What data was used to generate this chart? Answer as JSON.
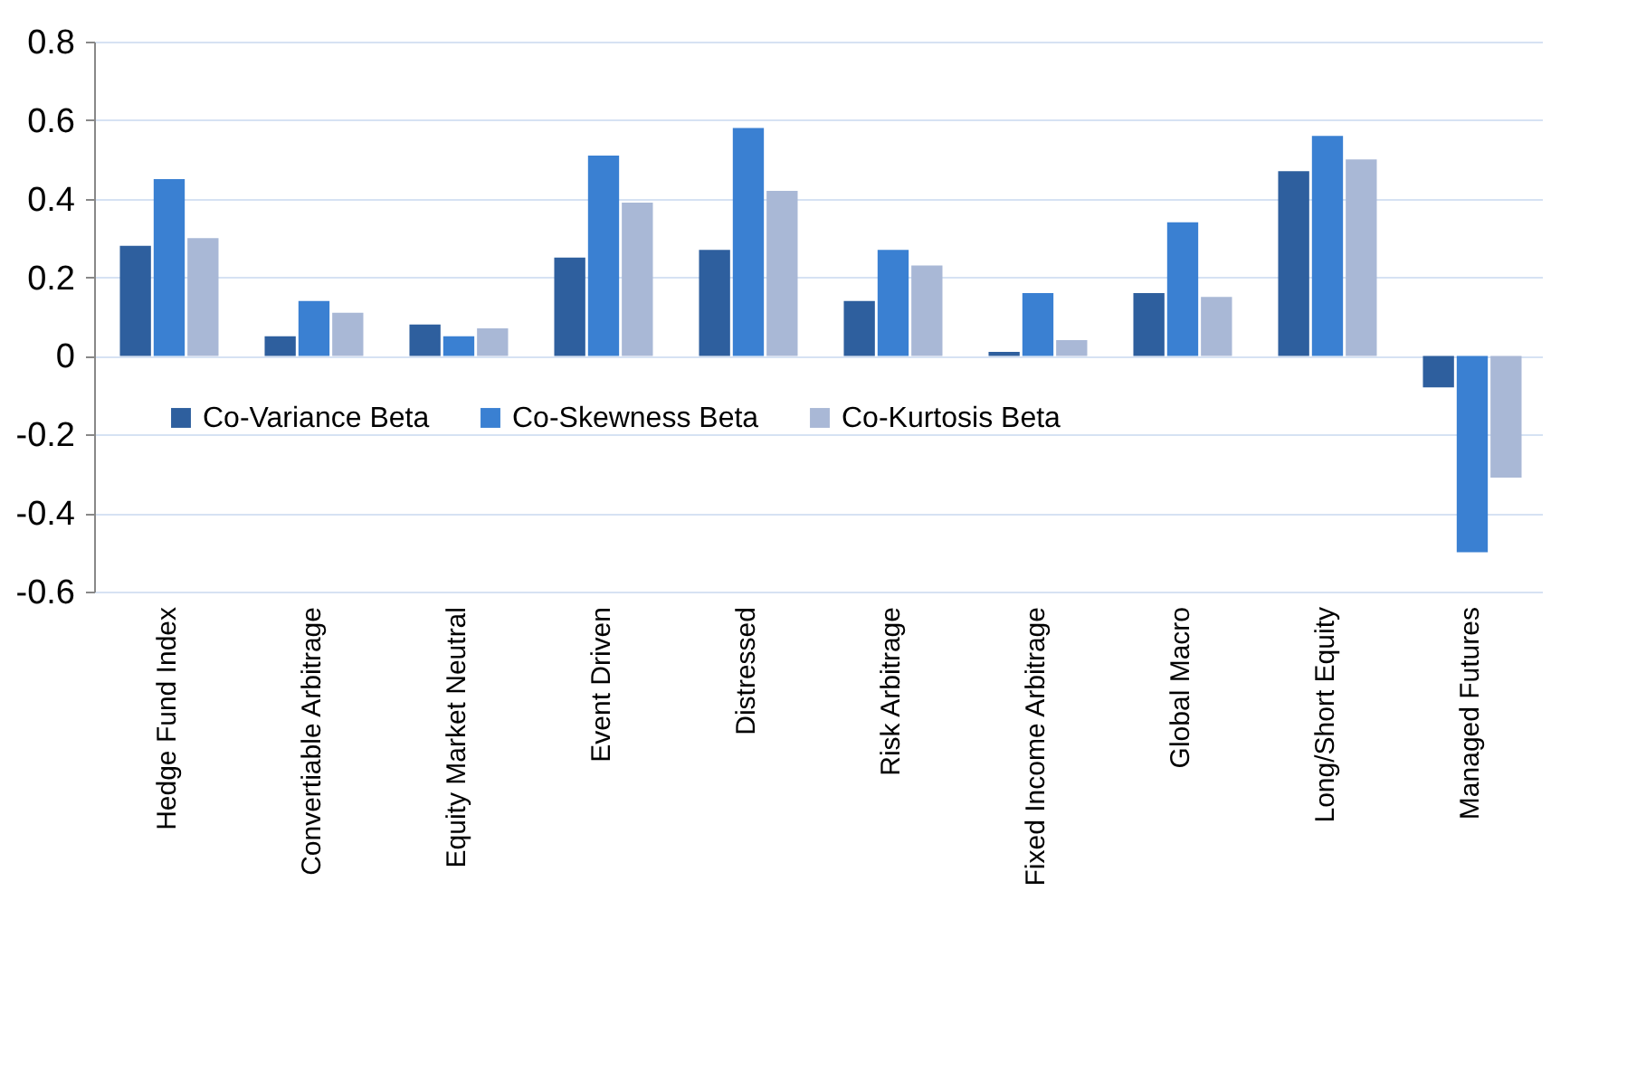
{
  "chart_data": {
    "type": "bar",
    "categories": [
      "Hedge Fund Index",
      "Convertiable Arbitrage",
      "Equity Market Neutral",
      "Event Driven",
      "Distressed",
      "Risk Arbitrage",
      "Fixed Income Arbitrage",
      "Global Macro",
      "Long/Short Equity",
      "Managed Futures"
    ],
    "series": [
      {
        "name": "Co-Variance Beta",
        "color": "#2e5f9e",
        "values": [
          0.28,
          0.05,
          0.08,
          0.25,
          0.27,
          0.14,
          0.01,
          0.16,
          0.47,
          -0.08
        ]
      },
      {
        "name": "Co-Skewness Beta",
        "color": "#3a80d2",
        "values": [
          0.45,
          0.14,
          0.05,
          0.51,
          0.58,
          0.27,
          0.16,
          0.34,
          0.56,
          -0.5
        ]
      },
      {
        "name": "Co-Kurtosis Beta",
        "color": "#a9b8d6",
        "values": [
          0.3,
          0.11,
          0.07,
          0.39,
          0.42,
          0.23,
          0.04,
          0.15,
          0.5,
          -0.31
        ]
      }
    ],
    "ylim": [
      -0.6,
      0.8
    ],
    "yticks": [
      -0.6,
      -0.4,
      -0.2,
      0,
      0.2,
      0.4,
      0.6,
      0.8
    ],
    "grid": "y",
    "legend": "bottom"
  }
}
